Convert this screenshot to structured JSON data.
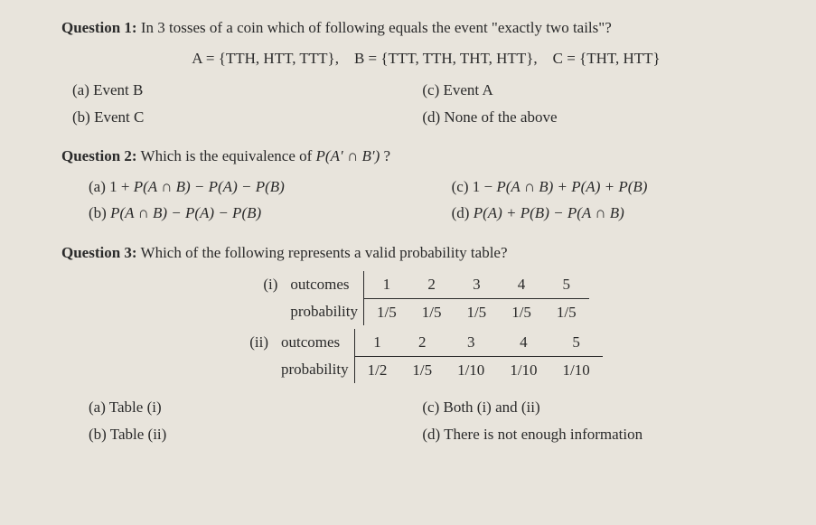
{
  "q1": {
    "title_bold": "Question 1:",
    "title_rest": " In 3 tosses of a coin which of following equals the event \"exactly two tails\"?",
    "sets": "A = {TTH, HTT, TTT}, B = {TTT, TTH, THT, HTT}, C = {THT, HTT}",
    "opt_a": "(a) Event B",
    "opt_b": "(b) Event C",
    "opt_c": "(c) Event A",
    "opt_d": "(d) None of the above"
  },
  "q2": {
    "title_bold": "Question 2:",
    "title_rest_pre": " Which is the equivalence of ",
    "title_math": "P(A′ ∩ B′)",
    "title_rest_post": " ?",
    "opt_a_pre": "(a) 1 + ",
    "opt_a_math": "P(A ∩ B) − P(A) − P(B)",
    "opt_b_pre": "(b) ",
    "opt_b_math": "P(A ∩ B) − P(A) − P(B)",
    "opt_c_pre": "(c) 1 − ",
    "opt_c_math": "P(A ∩ B) + P(A) + P(B)",
    "opt_d_pre": "(d)  ",
    "opt_d_math": "P(A) + P(B) − P(A ∩ B)"
  },
  "q3": {
    "title_bold": "Question 3:",
    "title_rest": " Which of the following represents a valid probability table?",
    "table1": {
      "label": "(i)",
      "row_header1": "outcomes",
      "row_header2": "probability",
      "outcomes": [
        "1",
        "2",
        "3",
        "4",
        "5"
      ],
      "probs": [
        "1/5",
        "1/5",
        "1/5",
        "1/5",
        "1/5"
      ]
    },
    "table2": {
      "label": "(ii)",
      "row_header1": "outcomes",
      "row_header2": "probability",
      "outcomes": [
        "1",
        "2",
        "3",
        "4",
        "5"
      ],
      "probs": [
        "1/2",
        "1/5",
        "1/10",
        "1/10",
        "1/10"
      ]
    },
    "opt_a": "(a) Table (i)",
    "opt_b": "(b) Table (ii)",
    "opt_c": "(c) Both (i) and (ii)",
    "opt_d": "(d) There is not enough information"
  }
}
